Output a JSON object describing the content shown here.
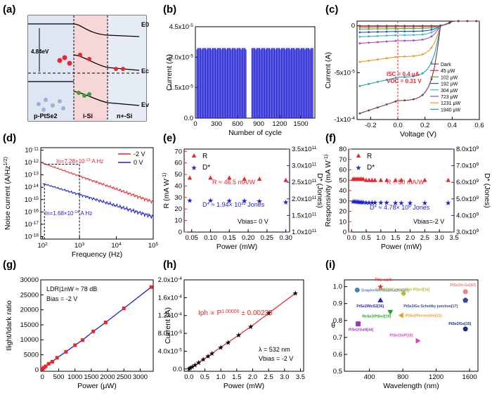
{
  "panel_labels": [
    "(a)",
    "(b)",
    "(c)",
    "(d)",
    "(e)",
    "(f)",
    "(g)",
    "(h)",
    "(i)"
  ],
  "colors": {
    "red": "#e8262b",
    "blue": "#1f1fd6",
    "black": "#000000",
    "panel_e_right_axis": "#1f1fd6"
  },
  "chart_data": [
    {
      "panel": "a",
      "type": "diagram",
      "labels": {
        "energy": "4.84eV",
        "e0": "E0",
        "ec": "Ec",
        "ev": "Ev",
        "ptse2": "p-PtSe2",
        "isi": "i-Si",
        "nsi": "n+-Si"
      }
    },
    {
      "panel": "b",
      "type": "bar",
      "xlabel": "Number of cycle",
      "ylabel": "Current (A)",
      "xticks": [
        "0",
        "300",
        "600",
        "900",
        "1200",
        "1500"
      ],
      "yticks": [
        "0.0",
        "1.5x10^-5",
        "3.0x10^-5",
        "4.5x10^-5"
      ],
      "ylim": [
        0,
        4.5e-05
      ],
      "values": [
        3.45e-05
      ],
      "description_level": 3.45e-05
    },
    {
      "panel": "c",
      "type": "line",
      "xlabel": "Voltage (V)",
      "ylabel": "Current (A)",
      "xticks": [
        "-0.2",
        "0.0",
        "0.2",
        "0.4",
        "0.6"
      ],
      "yticks": [
        "0",
        "-5x10^-5",
        "-1x10^-4"
      ],
      "xlim": [
        -0.3,
        0.6
      ],
      "ylim": [
        -0.0001,
        5e-06
      ],
      "annotations": [
        "ISC = 0.4 μA",
        "VOC = 0.31 V"
      ],
      "series": [
        {
          "name": "Dark",
          "color": "#555555",
          "isc": 0.0
        },
        {
          "name": "45 μW",
          "color": "#e8262b",
          "isc": 1e-06
        },
        {
          "name": "102 μW",
          "color": "#44aa44",
          "isc": 3e-06
        },
        {
          "name": "192 μW",
          "color": "#2255dd",
          "isc": 6e-06
        },
        {
          "name": "304 μW",
          "color": "#33bbbb",
          "isc": 1e-05
        },
        {
          "name": "723 μW",
          "color": "#aa44cc",
          "isc": 1.6e-05
        },
        {
          "name": "1231 μW",
          "color": "#ee9922",
          "isc": 3.3e-05
        },
        {
          "name": "1940 μW",
          "color": "#1fa0c0",
          "isc": 5.5e-05
        },
        {
          "name": "",
          "color": "#7a3a3a",
          "isc": 8e-05
        }
      ]
    },
    {
      "panel": "d",
      "type": "line",
      "xlabel": "Frequency (Hz)",
      "ylabel": "Noise current (A/Hz^1/2)",
      "xticks": [
        "10^2",
        "10^3",
        "10^4",
        "10^5"
      ],
      "yticks": [
        "10^-11",
        "10^-12",
        "10^-13",
        "10^-14",
        "10^-15",
        "10^-16",
        "10^-17",
        "10^-18"
      ],
      "annotations": [
        "In=7.28×10^-13 A Hz^-1/2",
        "In=1.68×10^-14 A Hz^-1/2"
      ],
      "series": [
        {
          "name": "-2 V",
          "color": "#e8262b"
        },
        {
          "name": "0 V",
          "color": "#1f1fd6"
        }
      ]
    },
    {
      "panel": "e",
      "type": "scatter",
      "xlabel": "Power (mW)",
      "ylabel": "R (mA W^-1)",
      "ylabel2": "D* (Jones)",
      "xticks": [
        "0.05",
        "0.10",
        "0.15",
        "0.20",
        "0.25",
        "0.30"
      ],
      "yticks": [
        "0",
        "10",
        "20",
        "30",
        "40",
        "50",
        "60",
        "70"
      ],
      "yticks2": [
        "1.0x10^11",
        "1.5x10^11",
        "2.0x10^11",
        "2.5x10^11",
        "3.0x10^11",
        "3.5x10^11"
      ],
      "annotations": [
        "R ≈ 46.5 mA/W",
        "D* ≈ 1.94× 10^11 Jones",
        "Vbias= 0 V"
      ],
      "legend": [
        "R",
        "D*"
      ],
      "series": [
        {
          "name": "R",
          "x": [
            0.045,
            0.1,
            0.15,
            0.19,
            0.23,
            0.3
          ],
          "y": [
            47,
            47,
            47,
            46,
            46,
            45
          ]
        },
        {
          "name": "D*",
          "x": [
            0.045,
            0.1,
            0.15,
            0.19,
            0.23,
            0.3
          ],
          "y": [
            195000000000.0,
            195000000000.0,
            194000000000.0,
            194000000000.0,
            193000000000.0,
            190000000000.0
          ]
        }
      ]
    },
    {
      "panel": "f",
      "type": "scatter",
      "xlabel": "Power (mW)",
      "ylabel": "Responsivity (mA W^-1)",
      "ylabel2": "D* (Jones)",
      "xticks": [
        "0.0",
        "0.5",
        "1.0",
        "1.5",
        "2.0",
        "2.5",
        "3.0",
        "3.5"
      ],
      "yticks": [
        "0",
        "10",
        "20",
        "30",
        "40",
        "50",
        "60",
        "70",
        "80"
      ],
      "yticks2": [
        "3.0x10^9",
        "4.0x10^9",
        "5.0x10^9",
        "6.0x10^9",
        "7.0x10^9",
        "8.0x10^9"
      ],
      "annotations": [
        "R ≈ 50 mA/W",
        "D* ≈ 4.78× 10^9 Jones",
        "Vbias=-2 V"
      ],
      "legend": [
        "R",
        "D*"
      ],
      "series": [
        {
          "name": "R",
          "x": [
            0.05,
            0.1,
            0.15,
            0.2,
            0.25,
            0.3,
            0.35,
            0.4,
            0.5,
            0.6,
            0.7,
            0.8,
            1.0,
            1.2,
            1.5,
            1.7,
            2.0,
            2.5,
            3.3
          ],
          "y": [
            51,
            51,
            51,
            51,
            51,
            51,
            51,
            51,
            50,
            50,
            50,
            50,
            50,
            50,
            50,
            50,
            50,
            50,
            50
          ]
        },
        {
          "name": "D*",
          "x": [
            0.05,
            0.1,
            0.15,
            0.2,
            0.25,
            0.3,
            0.35,
            0.4,
            0.5,
            0.6,
            0.7,
            0.8,
            1.0,
            1.2,
            1.5,
            1.7,
            2.0,
            2.5,
            3.3
          ],
          "y": [
            4850000000.0,
            4850000000.0,
            4850000000.0,
            4820000000.0,
            4820000000.0,
            4800000000.0,
            4800000000.0,
            4800000000.0,
            4780000000.0,
            4780000000.0,
            4780000000.0,
            4780000000.0,
            4780000000.0,
            4780000000.0,
            4760000000.0,
            4760000000.0,
            4760000000.0,
            4760000000.0,
            4760000000.0
          ]
        }
      ]
    },
    {
      "panel": "g",
      "type": "line",
      "xlabel": "Power (μW)",
      "ylabel": "Ilight/Idark ratio",
      "xticks": [
        "0",
        "500",
        "1000",
        "1500",
        "2000",
        "2500",
        "3000"
      ],
      "yticks": [
        "0",
        "5000",
        "10000",
        "15000",
        "20000",
        "25000",
        "30000"
      ],
      "annotations": [
        "LDR|1nW ≈ 78 dB",
        "Bias = -2 V"
      ],
      "x": [
        5,
        45,
        102,
        192,
        304,
        450,
        723,
        1000,
        1231,
        1560,
        1940,
        2500,
        3340
      ],
      "values": [
        300,
        700,
        1150,
        2000,
        2700,
        4000,
        6000,
        8200,
        9900,
        12800,
        15800,
        20500,
        27600
      ]
    },
    {
      "panel": "h",
      "type": "line",
      "xlabel": "Power (mW)",
      "ylabel": "Current (A)",
      "xticks": [
        "0.0",
        "0.5",
        "1.0",
        "1.5",
        "2.0",
        "2.5",
        "3.0",
        "3.5"
      ],
      "yticks": [
        "0.0",
        "4.0x10^-5",
        "8.0x10^-5",
        "1.2x10^-4",
        "1.6x10^-4",
        "2.0x10^-4"
      ],
      "annotations": [
        "Iph ∝ P^1.00006 ± 0.00235",
        "λ = 532 nm",
        "Vbias = -2 V"
      ],
      "x": [
        0.005,
        0.045,
        0.102,
        0.192,
        0.304,
        0.45,
        0.6,
        0.723,
        1.0,
        1.231,
        1.56,
        1.94,
        2.5,
        3.34
      ],
      "values": [
        1e-06,
        2.5e-06,
        5e-06,
        9e-06,
        1.5e-05,
        2.2e-05,
        2.9e-05,
        3.5e-05,
        4.9e-05,
        6e-05,
        7.6e-05,
        9.5e-05,
        0.000125,
        0.00017
      ]
    },
    {
      "panel": "i",
      "type": "scatter",
      "xlabel": "Wavelength (nm)",
      "ylabel": "θ",
      "xticks": [
        "400",
        "800",
        "1200",
        "1600"
      ],
      "yticks": [
        "0.5",
        "0.6",
        "0.7",
        "0.8",
        "0.9",
        "1.0"
      ],
      "points": [
        {
          "label": "This work",
          "x": 532,
          "y": 1.0,
          "color": "#e8262b",
          "shape": "star"
        },
        {
          "label": "PtSe2/n-Ge[43]",
          "x": 1550,
          "y": 0.97,
          "color": "#f08080",
          "shape": "circle"
        },
        {
          "label": "Graphene/PtSe2/Ga2O3[20]",
          "x": 254,
          "y": 0.98,
          "color": "#4a7fc8",
          "shape": "circle"
        },
        {
          "label": "Si-CMOS-Compatible PtSe2[16]",
          "x": 808,
          "y": 0.96,
          "color": "#b8b830",
          "shape": "diamond"
        },
        {
          "label": "PtSe2/MoS2[36]",
          "x": 532,
          "y": 0.92,
          "color": "#1f1fd6",
          "shape": "triangle"
        },
        {
          "label": "PtSe2/Ge Schottky junction[17]",
          "x": 1550,
          "y": 0.92,
          "color": "#34459a",
          "shape": "pentagon"
        },
        {
          "label": "ReSe2/PtSe2[19]",
          "x": 650,
          "y": 0.85,
          "color": "#22a022",
          "shape": "triangle-down"
        },
        {
          "label": "PtSe2/Perovskite[21]",
          "x": 780,
          "y": 0.83,
          "color": "#ee9922",
          "shape": "triangle-left"
        },
        {
          "label": "PtSe2/GaN[44]",
          "x": 265,
          "y": 0.78,
          "color": "#9a3ab0",
          "shape": "square"
        },
        {
          "label": "PtSe2/Ge[15]",
          "x": 1550,
          "y": 0.75,
          "color": "#1a2a7a",
          "shape": "circle"
        },
        {
          "label": "PtSe2/InP[18]",
          "x": 980,
          "y": 0.68,
          "color": "#e040c0",
          "shape": "triangle-right"
        }
      ]
    }
  ]
}
